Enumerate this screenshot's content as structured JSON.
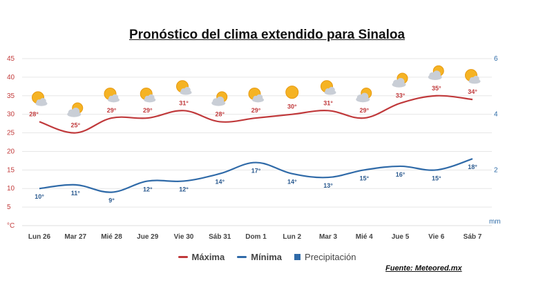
{
  "title": "Pronóstico del clima extendido para Sinaloa",
  "source": "Fuente: Meteored.mx",
  "legend": {
    "max": "Máxima",
    "min": "Mínima",
    "precip": "Precipitación"
  },
  "colors": {
    "max": "#c0393b",
    "min": "#2f6aa8",
    "precip": "#2f6aa8"
  },
  "chart_data": {
    "type": "line",
    "categories": [
      "Lun 26",
      "Mar 27",
      "Mié 28",
      "Jue 29",
      "Vie 30",
      "Sáb 31",
      "Dom 1",
      "Lun 2",
      "Mar 3",
      "Mié 4",
      "Jue 5",
      "Vie 6",
      "Sáb 7"
    ],
    "series": [
      {
        "name": "Máxima",
        "values": [
          28,
          25,
          29,
          29,
          31,
          28,
          29,
          30,
          31,
          29,
          33,
          35,
          34
        ]
      },
      {
        "name": "Mínima",
        "values": [
          10,
          11,
          9,
          12,
          12,
          14,
          17,
          14,
          13,
          15,
          16,
          15,
          18
        ]
      }
    ],
    "value_labels": {
      "max": [
        "28°",
        "25°",
        "29°",
        "29°",
        "31°",
        "28°",
        "29°",
        "30°",
        "31°",
        "29°",
        "33°",
        "35°",
        "34°"
      ],
      "min": [
        "10°",
        "11°",
        "9°",
        "12°",
        "12°",
        "14°",
        "17°",
        "14°",
        "13°",
        "15°",
        "16°",
        "15°",
        "18°"
      ]
    },
    "icons": [
      "sun-cloud-icon",
      "cloud-sun-icon",
      "sun-cloud-icon",
      "sun-cloud-icon",
      "sun-cloud-icon",
      "cloud-sun-icon",
      "sun-cloud-icon",
      "sun-icon",
      "sun-cloud-icon",
      "cloud-sun-icon",
      "cloud-sun-icon",
      "cloud-sun-icon",
      "sun-cloud-icon"
    ],
    "y_left": {
      "ticks": [
        "45",
        "40",
        "35",
        "30",
        "25",
        "20",
        "15",
        "10",
        "5"
      ],
      "unit": "°C",
      "range": [
        0,
        45
      ]
    },
    "y_right": {
      "ticks": [
        "6",
        "4",
        "2"
      ],
      "unit": "mm",
      "range": [
        0,
        6
      ]
    },
    "grid": true
  }
}
